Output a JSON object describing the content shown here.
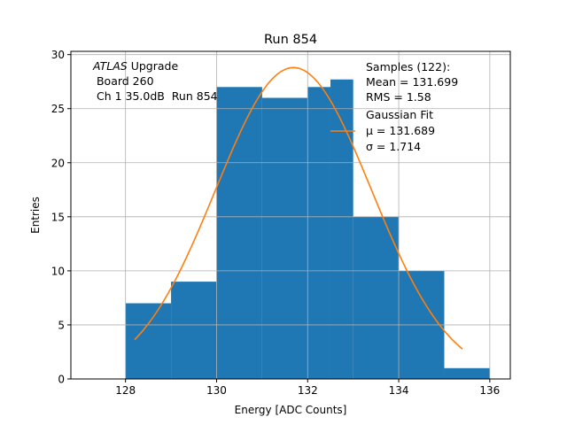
{
  "chart_data": {
    "type": "bar",
    "title": "Run 854",
    "xlabel": "Energy [ADC Counts]",
    "ylabel": "Entries",
    "xlim": [
      126.8,
      136.45
    ],
    "ylim": [
      0,
      30.3
    ],
    "xticks": [
      128,
      130,
      132,
      134,
      136
    ],
    "yticks": [
      0,
      5,
      10,
      15,
      20,
      25,
      30
    ],
    "grid": true,
    "bar_color": "#1f77b4",
    "fit_color": "#ff7f0e",
    "bins": [
      {
        "left": 128,
        "right": 129,
        "value": 7
      },
      {
        "left": 129,
        "right": 130,
        "value": 9
      },
      {
        "left": 130,
        "right": 131,
        "value": 27
      },
      {
        "left": 131,
        "right": 132,
        "value": 26
      },
      {
        "left": 132,
        "right": 132.5,
        "value": 27
      },
      {
        "left": 132.5,
        "right": 133,
        "value": 27.7
      },
      {
        "left": 133,
        "right": 134,
        "value": 15
      },
      {
        "left": 134,
        "right": 135,
        "value": 10
      },
      {
        "left": 135,
        "right": 136,
        "value": 1
      }
    ],
    "fit": {
      "mu": 131.689,
      "sigma": 1.714,
      "amplitude": 28.8,
      "x_range": [
        128.2,
        135.4
      ]
    },
    "annotation": {
      "italic": "ATLAS",
      "rest": " Upgrade",
      "line2": " Board 260",
      "line3": " Ch 1 35.0dB  Run 854"
    },
    "legend": {
      "placement": "top-right",
      "samples_line1": "Samples (122):",
      "samples_line2": "Mean = 131.699",
      "samples_line3": "RMS = 1.58",
      "fit_line1": "Gaussian Fit",
      "fit_line2": "μ = 131.689",
      "fit_line3": "σ = 1.714"
    }
  }
}
